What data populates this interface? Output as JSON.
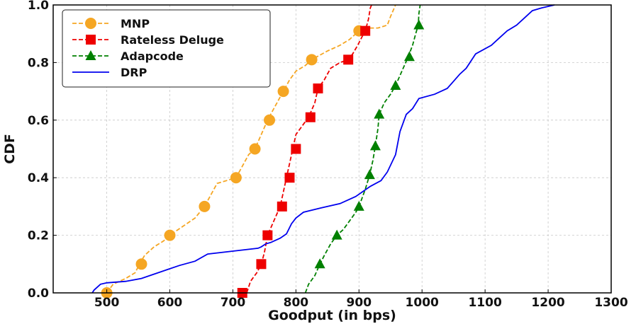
{
  "chart_data": {
    "type": "line",
    "xlabel": "Goodput (in bps)",
    "ylabel": "CDF",
    "xlim": [
      415,
      1300
    ],
    "ylim": [
      0,
      1
    ],
    "xticks": [
      500,
      600,
      700,
      800,
      900,
      1000,
      1100,
      1200,
      1300
    ],
    "yticks": [
      0.0,
      0.2,
      0.4,
      0.6,
      0.8,
      1.0
    ],
    "xtick_labels": [
      "500",
      "600",
      "700",
      "800",
      "900",
      "1000",
      "1100",
      "1200",
      "1300"
    ],
    "ytick_labels": [
      "0.0",
      "0.2",
      "0.4",
      "0.6",
      "0.8",
      "1.0"
    ],
    "grid": true,
    "legend_position": "top-left",
    "series": [
      {
        "name": "MNP",
        "color": "#f5a623",
        "dash": "dashed",
        "marker": "circle",
        "line": [
          [
            500,
            0.0
          ],
          [
            510,
            0.03
          ],
          [
            530,
            0.05
          ],
          [
            545,
            0.07
          ],
          [
            552,
            0.1
          ],
          [
            560,
            0.13
          ],
          [
            575,
            0.16
          ],
          [
            590,
            0.18
          ],
          [
            600,
            0.2
          ],
          [
            620,
            0.23
          ],
          [
            640,
            0.26
          ],
          [
            655,
            0.3
          ],
          [
            665,
            0.34
          ],
          [
            675,
            0.38
          ],
          [
            690,
            0.39
          ],
          [
            705,
            0.4
          ],
          [
            715,
            0.44
          ],
          [
            725,
            0.48
          ],
          [
            735,
            0.5
          ],
          [
            745,
            0.55
          ],
          [
            755,
            0.6
          ],
          [
            765,
            0.64
          ],
          [
            775,
            0.68
          ],
          [
            780,
            0.7
          ],
          [
            790,
            0.74
          ],
          [
            800,
            0.77
          ],
          [
            815,
            0.79
          ],
          [
            825,
            0.81
          ],
          [
            850,
            0.84
          ],
          [
            870,
            0.86
          ],
          [
            885,
            0.88
          ],
          [
            900,
            0.91
          ],
          [
            910,
            0.92
          ],
          [
            930,
            0.92
          ],
          [
            945,
            0.93
          ],
          [
            950,
            0.96
          ],
          [
            958,
            1.0
          ]
        ],
        "markers": [
          [
            500,
            0.0
          ],
          [
            555,
            0.1
          ],
          [
            600,
            0.2
          ],
          [
            655,
            0.3
          ],
          [
            705,
            0.4
          ],
          [
            735,
            0.5
          ],
          [
            758,
            0.6
          ],
          [
            780,
            0.7
          ],
          [
            825,
            0.81
          ],
          [
            900,
            0.91
          ]
        ]
      },
      {
        "name": "Rateless Deluge",
        "color": "#ee0000",
        "dash": "dashed",
        "marker": "square",
        "line": [
          [
            712,
            0.0
          ],
          [
            722,
            0.0
          ],
          [
            728,
            0.04
          ],
          [
            738,
            0.07
          ],
          [
            745,
            0.1
          ],
          [
            750,
            0.14
          ],
          [
            755,
            0.2
          ],
          [
            765,
            0.25
          ],
          [
            775,
            0.3
          ],
          [
            780,
            0.35
          ],
          [
            785,
            0.4
          ],
          [
            790,
            0.45
          ],
          [
            795,
            0.5
          ],
          [
            800,
            0.55
          ],
          [
            810,
            0.58
          ],
          [
            820,
            0.61
          ],
          [
            830,
            0.66
          ],
          [
            835,
            0.71
          ],
          [
            845,
            0.74
          ],
          [
            855,
            0.78
          ],
          [
            870,
            0.8
          ],
          [
            883,
            0.81
          ],
          [
            890,
            0.83
          ],
          [
            898,
            0.86
          ],
          [
            905,
            0.89
          ],
          [
            910,
            0.91
          ],
          [
            915,
            0.95
          ],
          [
            918,
            0.99
          ],
          [
            920,
            1.0
          ]
        ],
        "markers": [
          [
            715,
            0.0
          ],
          [
            745,
            0.1
          ],
          [
            755,
            0.2
          ],
          [
            778,
            0.3
          ],
          [
            790,
            0.4
          ],
          [
            800,
            0.5
          ],
          [
            823,
            0.61
          ],
          [
            835,
            0.71
          ],
          [
            883,
            0.81
          ],
          [
            910,
            0.91
          ]
        ]
      },
      {
        "name": "Adapcode",
        "color": "#008000",
        "dash": "dashed",
        "marker": "triangle",
        "line": [
          [
            815,
            0.0
          ],
          [
            820,
            0.03
          ],
          [
            830,
            0.06
          ],
          [
            838,
            0.1
          ],
          [
            845,
            0.13
          ],
          [
            855,
            0.17
          ],
          [
            865,
            0.2
          ],
          [
            875,
            0.22
          ],
          [
            885,
            0.25
          ],
          [
            895,
            0.28
          ],
          [
            900,
            0.3
          ],
          [
            910,
            0.36
          ],
          [
            917,
            0.41
          ],
          [
            922,
            0.46
          ],
          [
            926,
            0.51
          ],
          [
            930,
            0.57
          ],
          [
            932,
            0.62
          ],
          [
            940,
            0.66
          ],
          [
            950,
            0.69
          ],
          [
            958,
            0.72
          ],
          [
            968,
            0.77
          ],
          [
            978,
            0.82
          ],
          [
            985,
            0.86
          ],
          [
            990,
            0.9
          ],
          [
            994,
            0.93
          ],
          [
            995,
            0.97
          ],
          [
            997,
            1.0
          ]
        ],
        "markers": [
          [
            838,
            0.1
          ],
          [
            865,
            0.2
          ],
          [
            900,
            0.3
          ],
          [
            917,
            0.41
          ],
          [
            926,
            0.51
          ],
          [
            932,
            0.62
          ],
          [
            958,
            0.72
          ],
          [
            980,
            0.82
          ],
          [
            995,
            0.93
          ]
        ]
      },
      {
        "name": "DRP",
        "color": "#0000ee",
        "dash": "solid",
        "marker": "none",
        "line": [
          [
            477,
            0.0
          ],
          [
            480,
            0.01
          ],
          [
            485,
            0.02
          ],
          [
            490,
            0.03
          ],
          [
            500,
            0.035
          ],
          [
            530,
            0.04
          ],
          [
            555,
            0.05
          ],
          [
            575,
            0.065
          ],
          [
            595,
            0.08
          ],
          [
            615,
            0.095
          ],
          [
            640,
            0.11
          ],
          [
            660,
            0.135
          ],
          [
            700,
            0.145
          ],
          [
            740,
            0.155
          ],
          [
            745,
            0.16
          ],
          [
            752,
            0.17
          ],
          [
            760,
            0.175
          ],
          [
            775,
            0.19
          ],
          [
            785,
            0.205
          ],
          [
            793,
            0.24
          ],
          [
            800,
            0.26
          ],
          [
            812,
            0.28
          ],
          [
            840,
            0.295
          ],
          [
            870,
            0.31
          ],
          [
            895,
            0.335
          ],
          [
            918,
            0.37
          ],
          [
            935,
            0.39
          ],
          [
            945,
            0.42
          ],
          [
            958,
            0.48
          ],
          [
            965,
            0.56
          ],
          [
            975,
            0.62
          ],
          [
            985,
            0.64
          ],
          [
            995,
            0.675
          ],
          [
            1020,
            0.69
          ],
          [
            1040,
            0.71
          ],
          [
            1060,
            0.76
          ],
          [
            1070,
            0.78
          ],
          [
            1085,
            0.83
          ],
          [
            1110,
            0.86
          ],
          [
            1120,
            0.88
          ],
          [
            1135,
            0.91
          ],
          [
            1150,
            0.93
          ],
          [
            1165,
            0.96
          ],
          [
            1175,
            0.98
          ],
          [
            1190,
            0.99
          ],
          [
            1210,
            1.0
          ]
        ],
        "markers": []
      }
    ]
  }
}
